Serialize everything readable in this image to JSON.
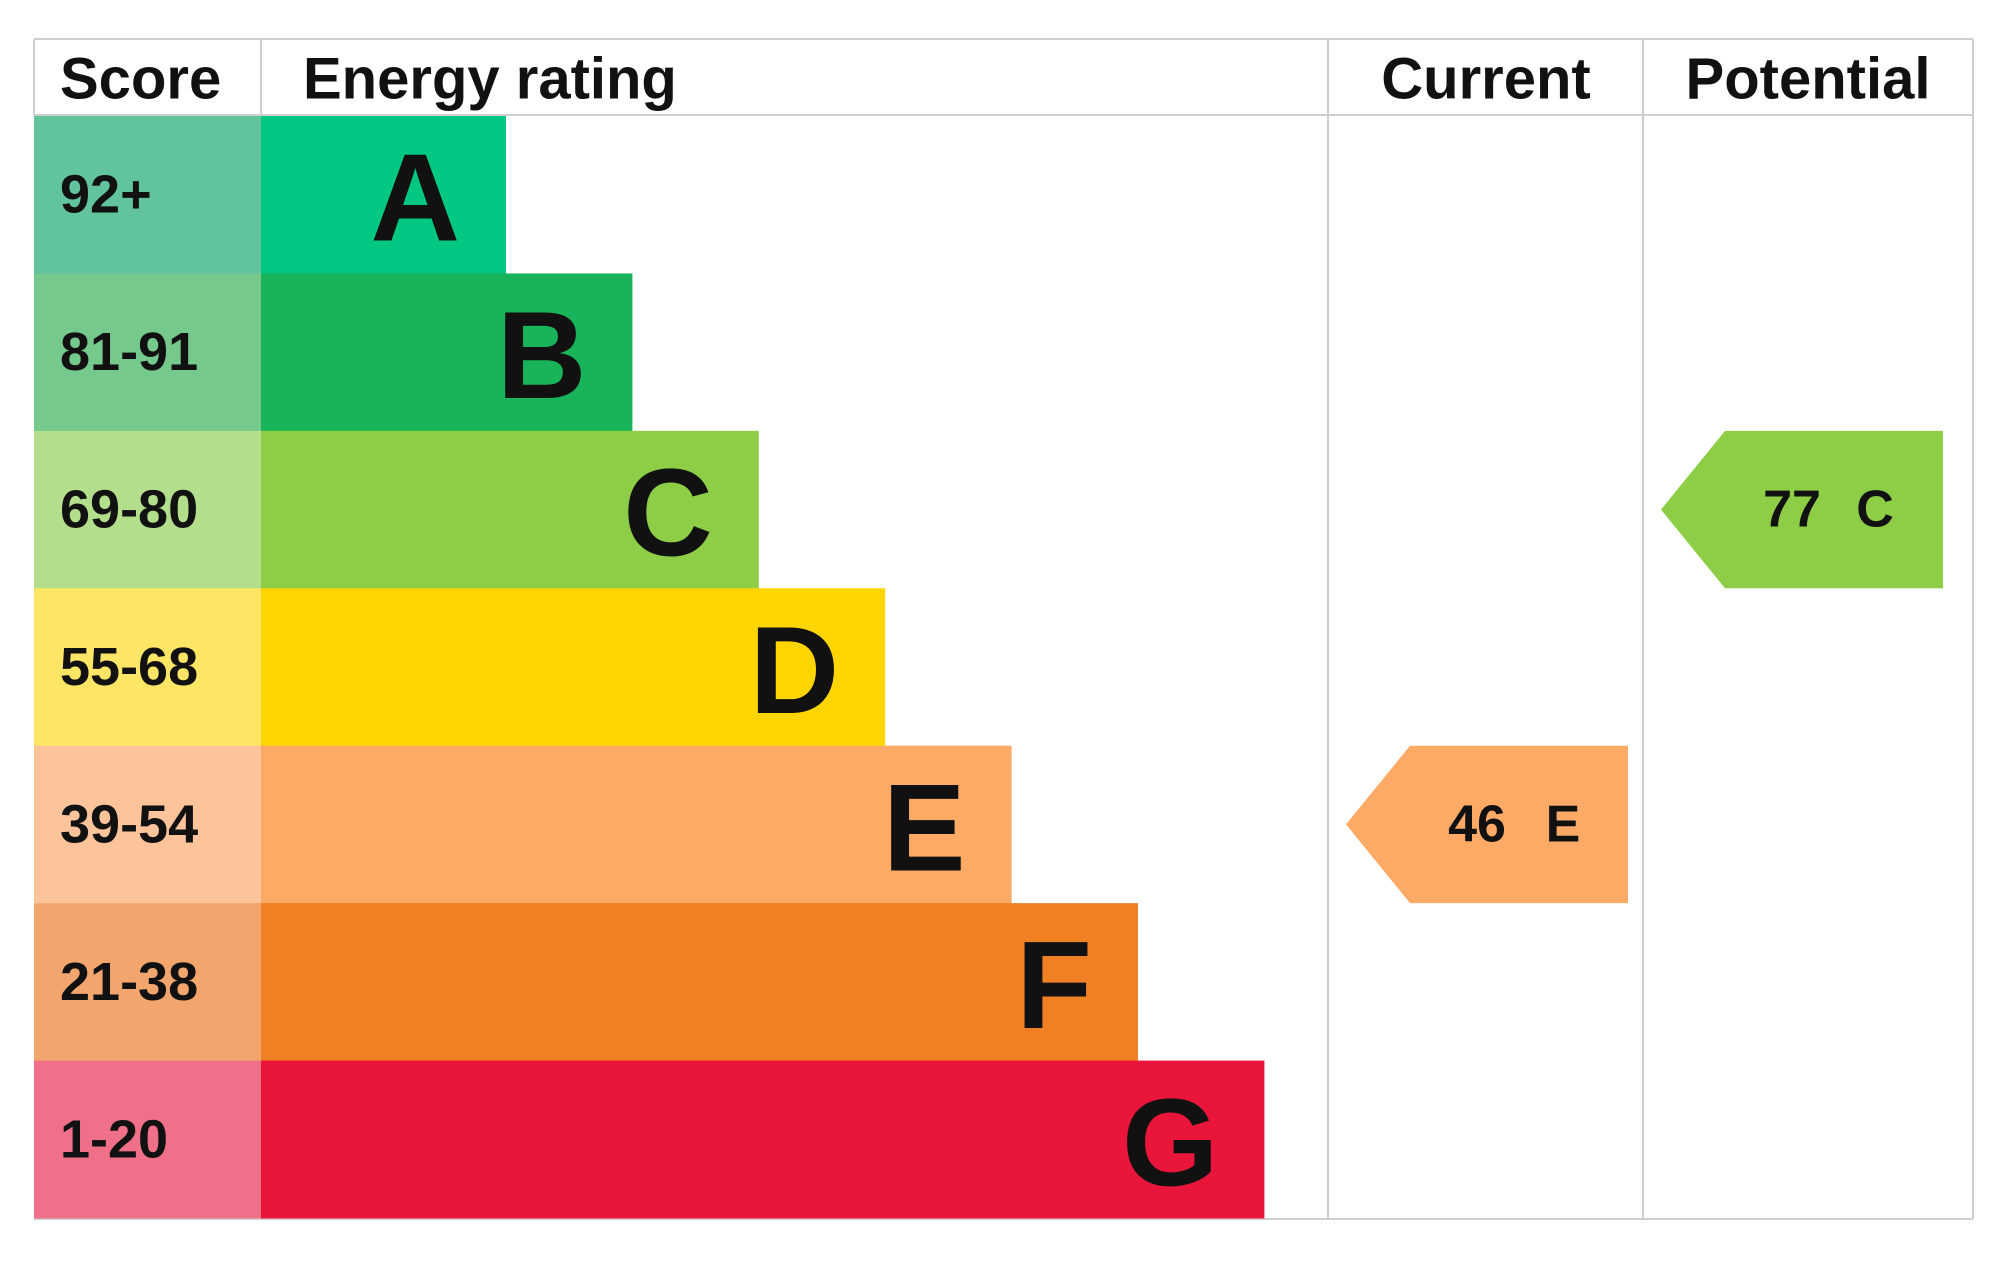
{
  "header": {
    "score": "Score",
    "rating": "Energy rating",
    "current": "Current",
    "potential": "Potential"
  },
  "bands": [
    {
      "score": "92+",
      "letter": "A",
      "color": "#00c781",
      "score_color": "#62c49c"
    },
    {
      "score": "81-91",
      "letter": "B",
      "color": "#19b459",
      "score_color": "#76c98d"
    },
    {
      "score": "69-80",
      "letter": "C",
      "color": "#8dce46",
      "score_color": "#b3df8c"
    },
    {
      "score": "55-68",
      "letter": "D",
      "color": "#ffd500",
      "score_color": "#ffe566"
    },
    {
      "score": "39-54",
      "letter": "E",
      "color": "#fcaa65",
      "score_color": "#fdc39a"
    },
    {
      "score": "21-38",
      "letter": "F",
      "color": "#ef8023",
      "score_color": "#f2a66d"
    },
    {
      "score": "1-20",
      "letter": "G",
      "color": "#e9153b",
      "score_color": "#ef7088"
    }
  ],
  "current": {
    "value": 46,
    "letter": "E",
    "color": "#fcaa65"
  },
  "potential": {
    "value": 77,
    "letter": "C",
    "color": "#8dce46"
  }
}
